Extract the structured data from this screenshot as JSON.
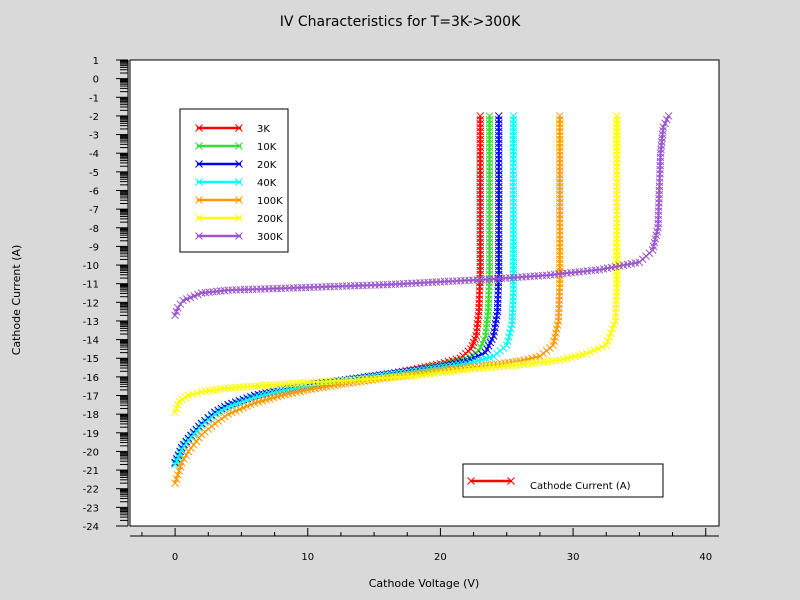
{
  "chart_data": {
    "type": "line",
    "title": "IV Characteristics for T=3K->300K",
    "xlabel": "Cathode Voltage (V)",
    "ylabel": "Cathode Current (A)",
    "xlim": [
      -3.4,
      41
    ],
    "ylim": [
      -24,
      1
    ],
    "x_ticks": [
      0,
      10,
      20,
      30,
      40
    ],
    "y_ticks": [
      1,
      0,
      -1,
      -2,
      -3,
      -4,
      -5,
      -6,
      -7,
      -8,
      -9,
      -10,
      -11,
      -12,
      -13,
      -14,
      -15,
      -16,
      -17,
      -18,
      -19,
      -20,
      -21,
      -22,
      -23,
      -24
    ],
    "y_scale": "linear (labels show log10 of current)",
    "grid": false,
    "legend_position": "top-left",
    "annotation": "Cathode Current (A)",
    "series": [
      {
        "name": "3K",
        "color": "#ff0000",
        "points": [
          [
            0,
            -20.6
          ],
          [
            0.5,
            -19.8
          ],
          [
            1,
            -19.3
          ],
          [
            2,
            -18.5
          ],
          [
            3,
            -17.9
          ],
          [
            4,
            -17.5
          ],
          [
            6,
            -17.0
          ],
          [
            8,
            -16.7
          ],
          [
            10,
            -16.45
          ],
          [
            12,
            -16.25
          ],
          [
            14,
            -16.05
          ],
          [
            16,
            -15.85
          ],
          [
            18,
            -15.6
          ],
          [
            20,
            -15.3
          ],
          [
            21.5,
            -15.0
          ],
          [
            22.3,
            -14.5
          ],
          [
            22.7,
            -13.8
          ],
          [
            22.9,
            -12.5
          ],
          [
            23.0,
            -10.5
          ],
          [
            23.0,
            -6
          ],
          [
            23.0,
            -2
          ]
        ]
      },
      {
        "name": "10K",
        "color": "#33dd33",
        "points": [
          [
            0,
            -20.6
          ],
          [
            0.5,
            -19.8
          ],
          [
            1,
            -19.3
          ],
          [
            2,
            -18.5
          ],
          [
            3,
            -17.9
          ],
          [
            4,
            -17.5
          ],
          [
            6,
            -17.0
          ],
          [
            8,
            -16.7
          ],
          [
            10,
            -16.45
          ],
          [
            12,
            -16.25
          ],
          [
            14,
            -16.05
          ],
          [
            16,
            -15.85
          ],
          [
            18,
            -15.65
          ],
          [
            20,
            -15.4
          ],
          [
            22,
            -15.05
          ],
          [
            22.9,
            -14.6
          ],
          [
            23.4,
            -13.8
          ],
          [
            23.6,
            -12.5
          ],
          [
            23.7,
            -10.5
          ],
          [
            23.7,
            -6
          ],
          [
            23.7,
            -2
          ]
        ]
      },
      {
        "name": "20K",
        "color": "#0000ee",
        "points": [
          [
            0,
            -20.6
          ],
          [
            0.5,
            -19.8
          ],
          [
            1,
            -19.3
          ],
          [
            2,
            -18.5
          ],
          [
            3,
            -17.9
          ],
          [
            4,
            -17.5
          ],
          [
            6,
            -17.0
          ],
          [
            8,
            -16.7
          ],
          [
            10,
            -16.45
          ],
          [
            12,
            -16.25
          ],
          [
            14,
            -16.05
          ],
          [
            16,
            -15.85
          ],
          [
            18,
            -15.65
          ],
          [
            20,
            -15.45
          ],
          [
            22,
            -15.15
          ],
          [
            23.4,
            -14.7
          ],
          [
            24.0,
            -13.8
          ],
          [
            24.3,
            -12.5
          ],
          [
            24.4,
            -10.5
          ],
          [
            24.4,
            -6
          ],
          [
            24.4,
            -2
          ]
        ]
      },
      {
        "name": "40K",
        "color": "#00ffff",
        "points": [
          [
            0,
            -20.7
          ],
          [
            0.5,
            -19.9
          ],
          [
            1,
            -19.4
          ],
          [
            2,
            -18.6
          ],
          [
            3,
            -18.0
          ],
          [
            4,
            -17.6
          ],
          [
            6,
            -17.1
          ],
          [
            8,
            -16.75
          ],
          [
            10,
            -16.5
          ],
          [
            12,
            -16.3
          ],
          [
            14,
            -16.1
          ],
          [
            16,
            -15.9
          ],
          [
            18,
            -15.7
          ],
          [
            20,
            -15.5
          ],
          [
            22,
            -15.3
          ],
          [
            24,
            -14.9
          ],
          [
            25.0,
            -14.3
          ],
          [
            25.4,
            -13.2
          ],
          [
            25.5,
            -11.5
          ],
          [
            25.5,
            -6
          ],
          [
            25.5,
            -2
          ]
        ]
      },
      {
        "name": "100K",
        "color": "#ff9900",
        "points": [
          [
            0,
            -21.7
          ],
          [
            0.5,
            -20.6
          ],
          [
            1,
            -20.0
          ],
          [
            2,
            -19.1
          ],
          [
            3,
            -18.5
          ],
          [
            4,
            -18.0
          ],
          [
            6,
            -17.4
          ],
          [
            8,
            -17.0
          ],
          [
            10,
            -16.7
          ],
          [
            12,
            -16.45
          ],
          [
            14,
            -16.25
          ],
          [
            16,
            -16.05
          ],
          [
            18,
            -15.85
          ],
          [
            20,
            -15.65
          ],
          [
            22,
            -15.5
          ],
          [
            24,
            -15.35
          ],
          [
            26,
            -15.15
          ],
          [
            27.5,
            -14.9
          ],
          [
            28.5,
            -14.3
          ],
          [
            28.9,
            -13.0
          ],
          [
            29.0,
            -11.0
          ],
          [
            29.0,
            -6
          ],
          [
            29.0,
            -2
          ]
        ]
      },
      {
        "name": "200K",
        "color": "#ffff00",
        "points": [
          [
            0,
            -17.9
          ],
          [
            0.3,
            -17.3
          ],
          [
            1,
            -17.0
          ],
          [
            2,
            -16.8
          ],
          [
            4,
            -16.6
          ],
          [
            6,
            -16.5
          ],
          [
            8,
            -16.4
          ],
          [
            10,
            -16.3
          ],
          [
            14,
            -16.15
          ],
          [
            18,
            -15.95
          ],
          [
            22,
            -15.6
          ],
          [
            26,
            -15.35
          ],
          [
            29,
            -15.1
          ],
          [
            31,
            -14.75
          ],
          [
            32.5,
            -14.3
          ],
          [
            33.2,
            -13.0
          ],
          [
            33.3,
            -11.0
          ],
          [
            33.3,
            -6
          ],
          [
            33.3,
            -2
          ]
        ]
      },
      {
        "name": "300K",
        "color": "#9955cc",
        "points": [
          [
            0,
            -12.7
          ],
          [
            0.2,
            -12.3
          ],
          [
            0.6,
            -11.9
          ],
          [
            2,
            -11.5
          ],
          [
            4,
            -11.35
          ],
          [
            8,
            -11.25
          ],
          [
            12,
            -11.15
          ],
          [
            16,
            -11.05
          ],
          [
            20,
            -10.9
          ],
          [
            24,
            -10.75
          ],
          [
            28,
            -10.55
          ],
          [
            32,
            -10.25
          ],
          [
            35,
            -9.85
          ],
          [
            36.0,
            -9.2
          ],
          [
            36.4,
            -8.0
          ],
          [
            36.5,
            -6
          ],
          [
            36.6,
            -4
          ],
          [
            36.8,
            -2.6
          ],
          [
            37.2,
            -2.0
          ]
        ]
      }
    ]
  }
}
